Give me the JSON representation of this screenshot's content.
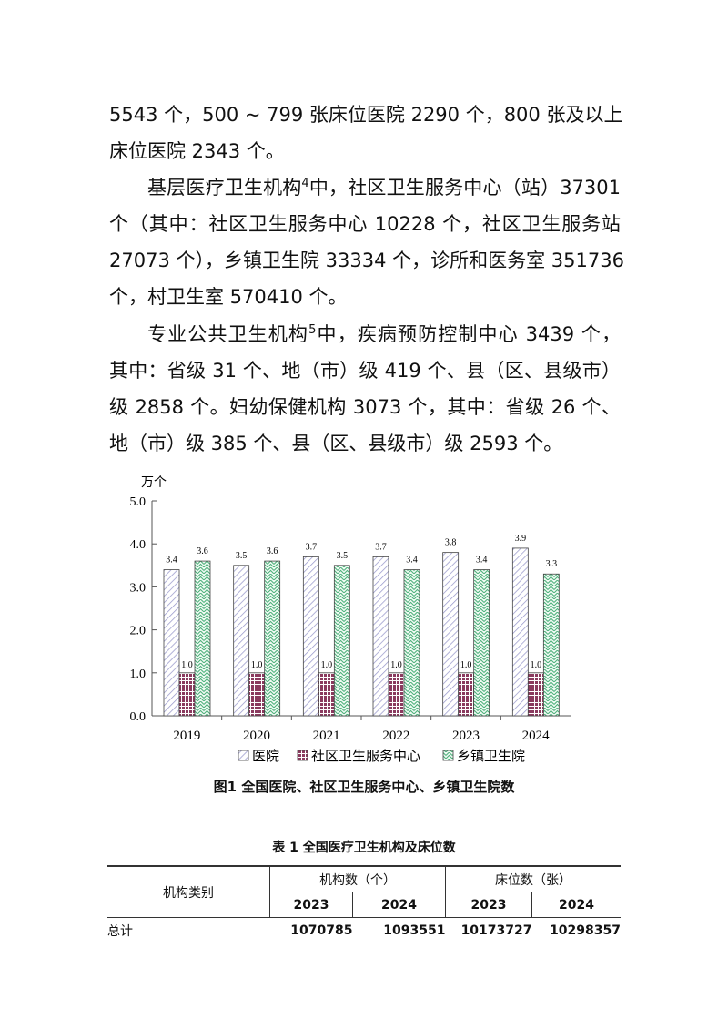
{
  "body_lines": [
    {
      "pre": "5543 个，500 ~ 799 张床位医院 2290 个，800 张及以上",
      "sup": "",
      "post": ""
    },
    {
      "pre": "床位医院 2343 个。",
      "sup": "",
      "post": ""
    },
    {
      "pre": "基层医疗卫生机构",
      "sup": "4",
      "post": "中，社区卫生服务中心（站）37301"
    },
    {
      "pre": "个（其中：社区卫生服务中心 10228 个，社区卫生服务站",
      "sup": "",
      "post": ""
    },
    {
      "pre": "27073 个），乡镇卫生院 33334 个，诊所和医务室 351736",
      "sup": "",
      "post": ""
    },
    {
      "pre": "个，村卫生室 570410 个。",
      "sup": "",
      "post": ""
    },
    {
      "pre": "专业公共卫生机构",
      "sup": "5",
      "post": "中，疾病预防控制中心 3439 个，"
    },
    {
      "pre": "其中：省级 31 个、地（市）级 419 个、县（区、县级市）",
      "sup": "",
      "post": ""
    },
    {
      "pre": "级 2858 个。妇幼保健机构 3073 个，其中：省级 26 个、",
      "sup": "",
      "post": ""
    },
    {
      "pre": "地（市）级 385 个、县（区、县级市）级 2593 个。",
      "sup": "",
      "post": ""
    }
  ],
  "chart_data": {
    "type": "bar",
    "title": "图1  全国医院、社区卫生服务中心、乡镇卫生院数",
    "ylabel": "万个",
    "ylim": [
      0,
      5
    ],
    "yticks": [
      "0.0",
      "1.0",
      "2.0",
      "3.0",
      "4.0",
      "5.0"
    ],
    "categories": [
      "2019",
      "2020",
      "2021",
      "2022",
      "2023",
      "2024"
    ],
    "series": [
      {
        "name": "医院",
        "values": [
          3.4,
          3.5,
          3.7,
          3.7,
          3.8,
          3.9
        ],
        "labels": [
          "3.4",
          "3.5",
          "3.7",
          "3.7",
          "3.8",
          "3.9"
        ],
        "color": "#ccccee",
        "pattern": "diagonal"
      },
      {
        "name": "社区卫生服务中心",
        "values": [
          1.0,
          1.0,
          1.0,
          1.0,
          1.0,
          1.0
        ],
        "labels": [
          "1.0",
          "1.0",
          "1.0",
          "1.0",
          "1.0",
          "1.0"
        ],
        "color": "#8a3a5e",
        "pattern": "crosshatch"
      },
      {
        "name": "乡镇卫生院",
        "values": [
          3.6,
          3.6,
          3.5,
          3.4,
          3.4,
          3.3
        ],
        "labels": [
          "3.6",
          "3.6",
          "3.5",
          "3.4",
          "3.4",
          "3.3"
        ],
        "color": "#4caf7a",
        "pattern": "zigzag"
      }
    ],
    "legend": "bottom",
    "grid": false
  },
  "table": {
    "title": "表 1    全国医疗卫生机构及床位数",
    "col_category": "机构类别",
    "group_institutions": "机构数（个）",
    "group_beds": "床位数（张）",
    "years": [
      "2023",
      "2024",
      "2023",
      "2024"
    ],
    "rows": [
      {
        "name": "总计",
        "values": [
          "1070785",
          "1093551",
          "10173727",
          "10298357"
        ]
      }
    ]
  }
}
